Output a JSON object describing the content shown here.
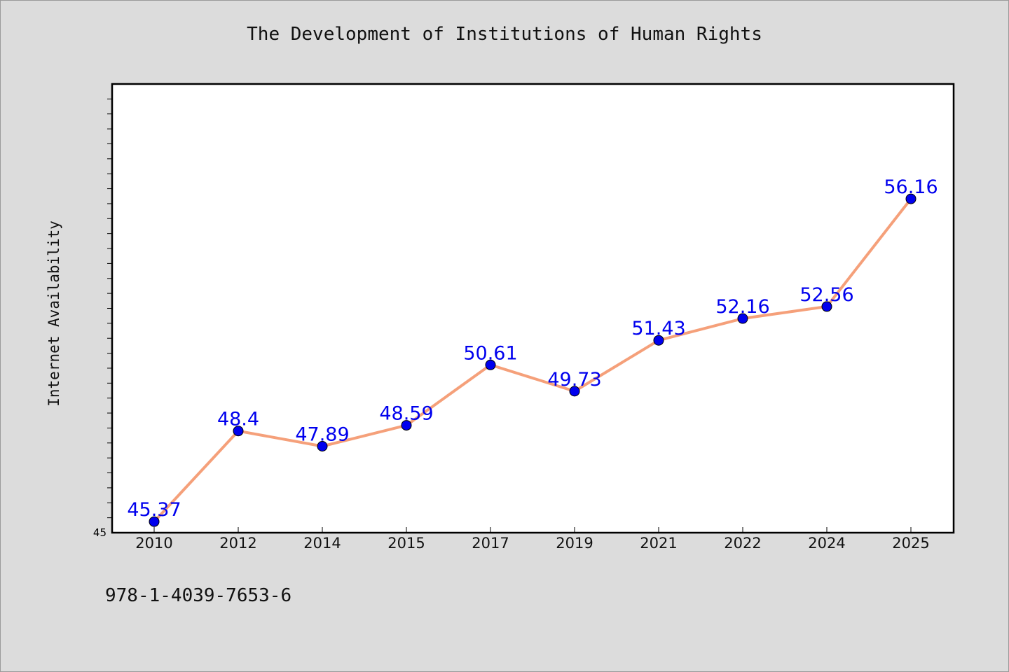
{
  "chart_data": {
    "type": "line",
    "title": "The Development of Institutions of Human Rights",
    "xlabel": "",
    "ylabel": "Internet Availability",
    "categories": [
      "2010",
      "2012",
      "2014",
      "2015",
      "2017",
      "2019",
      "2021",
      "2022",
      "2024",
      "2025"
    ],
    "series": [
      {
        "values": [
          45.37,
          48.4,
          47.89,
          48.59,
          50.61,
          49.73,
          51.43,
          52.16,
          52.56,
          56.16
        ],
        "data_labels": [
          "45.37",
          "48.4",
          "47.89",
          "48.59",
          "50.61",
          "49.73",
          "51.43",
          "52.16",
          "52.56",
          "56.16"
        ],
        "line_color": "#f5a07a",
        "marker_color": "#0000ee"
      }
    ],
    "ylim": [
      45,
      60
    ],
    "y_tick_labels": [
      "45"
    ],
    "grid": false,
    "legend": "none"
  },
  "footer": {
    "identifier": "978-1-4039-7653-6"
  },
  "colors": {
    "background": "#dcdcdc",
    "plot_area": "#ffffff",
    "data_label": "#0000ee"
  }
}
